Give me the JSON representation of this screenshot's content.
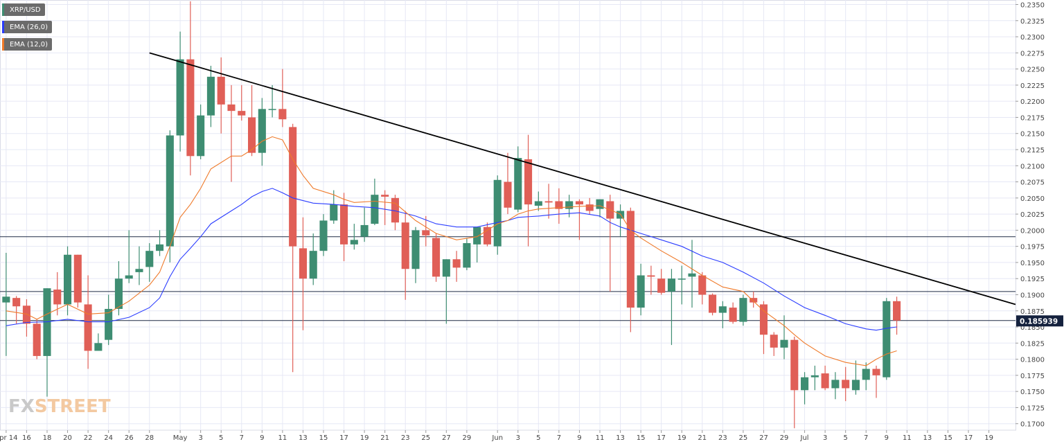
{
  "chart_data": {
    "type": "candlestick",
    "symbol": "XRP/USD",
    "legend": [
      {
        "label": "XRP/USD",
        "color": "#3e8d72"
      },
      {
        "label": "EMA (26,0)",
        "color": "#2a3cff"
      },
      {
        "label": "EMA (12,0)",
        "color": "#ef7a2a"
      }
    ],
    "colors": {
      "up": "#3e8d72",
      "down": "#e05f57",
      "ema26": "#2a3cff",
      "ema12": "#ef7a2a",
      "grid": "#e6e8f5",
      "trend": "#000000"
    },
    "ylim": [
      0.169,
      0.2357
    ],
    "y_ticks": [
      "0.1700",
      "0.1725",
      "0.1750",
      "0.1775",
      "0.1800",
      "0.1825",
      "0.1850",
      "0.1875",
      "0.1900",
      "0.1925",
      "0.1950",
      "0.1975",
      "0.2000",
      "0.2025",
      "0.2050",
      "0.2075",
      "0.2100",
      "0.2125",
      "0.2150",
      "0.2175",
      "0.2200",
      "0.2225",
      "0.2250",
      "0.2275",
      "0.2300",
      "0.2325",
      "0.2350"
    ],
    "x_range": [
      -0.3,
      49.3
    ],
    "x_ticks": [
      {
        "i": 0,
        "label": "Apr 14"
      },
      {
        "i": 1,
        "label": "16"
      },
      {
        "i": 2,
        "label": "18"
      },
      {
        "i": 3,
        "label": "20"
      },
      {
        "i": 4,
        "label": "22"
      },
      {
        "i": 5,
        "label": "24"
      },
      {
        "i": 6,
        "label": "26"
      },
      {
        "i": 7,
        "label": "28"
      },
      {
        "i": 8.5,
        "label": "May"
      },
      {
        "i": 9.5,
        "label": "3"
      },
      {
        "i": 10.5,
        "label": "5"
      },
      {
        "i": 11.5,
        "label": "7"
      },
      {
        "i": 12.5,
        "label": "9"
      },
      {
        "i": 13.5,
        "label": "11"
      },
      {
        "i": 14.5,
        "label": "13"
      },
      {
        "i": 15.5,
        "label": "15"
      },
      {
        "i": 16.5,
        "label": "17"
      },
      {
        "i": 17.5,
        "label": "19"
      },
      {
        "i": 18.5,
        "label": "21"
      },
      {
        "i": 19.5,
        "label": "23"
      },
      {
        "i": 20.5,
        "label": "25"
      },
      {
        "i": 21.5,
        "label": "27"
      },
      {
        "i": 22.5,
        "label": "29"
      },
      {
        "i": 24,
        "label": "Jun"
      },
      {
        "i": 25,
        "label": "3"
      },
      {
        "i": 26,
        "label": "5"
      },
      {
        "i": 27,
        "label": "7"
      },
      {
        "i": 28,
        "label": "9"
      },
      {
        "i": 29,
        "label": "11"
      },
      {
        "i": 30,
        "label": "13"
      },
      {
        "i": 31,
        "label": "15"
      },
      {
        "i": 32,
        "label": "17"
      },
      {
        "i": 33,
        "label": "19"
      },
      {
        "i": 34,
        "label": "21"
      },
      {
        "i": 35,
        "label": "23"
      },
      {
        "i": 36,
        "label": "25"
      },
      {
        "i": 37,
        "label": "27"
      },
      {
        "i": 38,
        "label": "29"
      },
      {
        "i": 39,
        "label": "Jul"
      },
      {
        "i": 40,
        "label": "3"
      },
      {
        "i": 41,
        "label": "5"
      },
      {
        "i": 42,
        "label": "7"
      },
      {
        "i": 43,
        "label": "9"
      },
      {
        "i": 44,
        "label": "11"
      },
      {
        "i": 45,
        "label": "13"
      },
      {
        "i": 46,
        "label": "15"
      },
      {
        "i": 47,
        "label": "17"
      },
      {
        "i": 48,
        "label": "19"
      }
    ],
    "candles": [
      {
        "i": 0.0,
        "o": 0.1888,
        "h": 0.1965,
        "l": 0.1805,
        "c": 0.1897
      },
      {
        "i": 0.5,
        "o": 0.1895,
        "h": 0.1898,
        "l": 0.1855,
        "c": 0.1882
      },
      {
        "i": 1.0,
        "o": 0.1883,
        "h": 0.1893,
        "l": 0.1835,
        "c": 0.1855
      },
      {
        "i": 1.5,
        "o": 0.1855,
        "h": 0.1862,
        "l": 0.18,
        "c": 0.1805
      },
      {
        "i": 2.0,
        "o": 0.1805,
        "h": 0.191,
        "l": 0.1742,
        "c": 0.191
      },
      {
        "i": 2.5,
        "o": 0.1908,
        "h": 0.1935,
        "l": 0.1868,
        "c": 0.1885
      },
      {
        "i": 3.0,
        "o": 0.1885,
        "h": 0.1975,
        "l": 0.1868,
        "c": 0.1962
      },
      {
        "i": 3.5,
        "o": 0.1962,
        "h": 0.1962,
        "l": 0.188,
        "c": 0.1888
      },
      {
        "i": 4.0,
        "o": 0.1885,
        "h": 0.193,
        "l": 0.1785,
        "c": 0.1813
      },
      {
        "i": 4.5,
        "o": 0.1813,
        "h": 0.184,
        "l": 0.1813,
        "c": 0.1825
      },
      {
        "i": 5.0,
        "o": 0.183,
        "h": 0.19,
        "l": 0.1822,
        "c": 0.1878
      },
      {
        "i": 5.5,
        "o": 0.1878,
        "h": 0.1952,
        "l": 0.1868,
        "c": 0.1925
      },
      {
        "i": 6.0,
        "o": 0.1925,
        "h": 0.2,
        "l": 0.1918,
        "c": 0.193
      },
      {
        "i": 6.5,
        "o": 0.1935,
        "h": 0.1975,
        "l": 0.1915,
        "c": 0.194
      },
      {
        "i": 7.0,
        "o": 0.1943,
        "h": 0.198,
        "l": 0.192,
        "c": 0.1968
      },
      {
        "i": 7.5,
        "o": 0.1968,
        "h": 0.2,
        "l": 0.196,
        "c": 0.1978
      },
      {
        "i": 8.0,
        "o": 0.1975,
        "h": 0.2155,
        "l": 0.195,
        "c": 0.2147
      },
      {
        "i": 8.5,
        "o": 0.2147,
        "h": 0.2308,
        "l": 0.2122,
        "c": 0.2265
      },
      {
        "i": 9.0,
        "o": 0.2265,
        "h": 0.2355,
        "l": 0.2085,
        "c": 0.2115
      },
      {
        "i": 9.5,
        "o": 0.2115,
        "h": 0.2195,
        "l": 0.211,
        "c": 0.2178
      },
      {
        "i": 10.0,
        "o": 0.2178,
        "h": 0.2255,
        "l": 0.216,
        "c": 0.2238
      },
      {
        "i": 10.5,
        "o": 0.2238,
        "h": 0.2268,
        "l": 0.215,
        "c": 0.2195
      },
      {
        "i": 11.0,
        "o": 0.2195,
        "h": 0.2225,
        "l": 0.2075,
        "c": 0.2185
      },
      {
        "i": 11.5,
        "o": 0.2185,
        "h": 0.2225,
        "l": 0.217,
        "c": 0.2178
      },
      {
        "i": 12.0,
        "o": 0.2175,
        "h": 0.2225,
        "l": 0.2115,
        "c": 0.212
      },
      {
        "i": 12.5,
        "o": 0.212,
        "h": 0.2205,
        "l": 0.21,
        "c": 0.2188
      },
      {
        "i": 13.0,
        "o": 0.2188,
        "h": 0.2225,
        "l": 0.2175,
        "c": 0.2188
      },
      {
        "i": 13.5,
        "o": 0.2188,
        "h": 0.225,
        "l": 0.216,
        "c": 0.2172
      },
      {
        "i": 14.0,
        "o": 0.216,
        "h": 0.2165,
        "l": 0.178,
        "c": 0.1975
      },
      {
        "i": 14.5,
        "o": 0.1972,
        "h": 0.202,
        "l": 0.1845,
        "c": 0.1925
      },
      {
        "i": 15.0,
        "o": 0.1925,
        "h": 0.1995,
        "l": 0.1915,
        "c": 0.1968
      },
      {
        "i": 15.5,
        "o": 0.1968,
        "h": 0.2025,
        "l": 0.196,
        "c": 0.2015
      },
      {
        "i": 16.0,
        "o": 0.2015,
        "h": 0.2062,
        "l": 0.201,
        "c": 0.204
      },
      {
        "i": 16.5,
        "o": 0.204,
        "h": 0.2058,
        "l": 0.1952,
        "c": 0.1978
      },
      {
        "i": 17.0,
        "o": 0.1978,
        "h": 0.201,
        "l": 0.197,
        "c": 0.1985
      },
      {
        "i": 17.5,
        "o": 0.199,
        "h": 0.2035,
        "l": 0.1982,
        "c": 0.2008
      },
      {
        "i": 18.0,
        "o": 0.201,
        "h": 0.208,
        "l": 0.2008,
        "c": 0.2055
      },
      {
        "i": 18.5,
        "o": 0.2055,
        "h": 0.2062,
        "l": 0.2008,
        "c": 0.2052
      },
      {
        "i": 19.0,
        "o": 0.205,
        "h": 0.2055,
        "l": 0.2,
        "c": 0.2012
      },
      {
        "i": 19.5,
        "o": 0.2012,
        "h": 0.203,
        "l": 0.1892,
        "c": 0.194
      },
      {
        "i": 20.0,
        "o": 0.194,
        "h": 0.2005,
        "l": 0.1918,
        "c": 0.2
      },
      {
        "i": 20.5,
        "o": 0.2,
        "h": 0.2022,
        "l": 0.1975,
        "c": 0.1992
      },
      {
        "i": 21.0,
        "o": 0.1988,
        "h": 0.1995,
        "l": 0.192,
        "c": 0.1928
      },
      {
        "i": 21.5,
        "o": 0.1928,
        "h": 0.1955,
        "l": 0.1855,
        "c": 0.1955
      },
      {
        "i": 22.0,
        "o": 0.1955,
        "h": 0.1968,
        "l": 0.192,
        "c": 0.1942
      },
      {
        "i": 22.5,
        "o": 0.1942,
        "h": 0.1988,
        "l": 0.1938,
        "c": 0.198
      },
      {
        "i": 23.0,
        "o": 0.1978,
        "h": 0.2005,
        "l": 0.195,
        "c": 0.2005
      },
      {
        "i": 23.5,
        "o": 0.2005,
        "h": 0.2012,
        "l": 0.1975,
        "c": 0.1978
      },
      {
        "i": 24.0,
        "o": 0.1975,
        "h": 0.2085,
        "l": 0.1962,
        "c": 0.2078
      },
      {
        "i": 24.5,
        "o": 0.2075,
        "h": 0.212,
        "l": 0.2025,
        "c": 0.2035
      },
      {
        "i": 25.0,
        "o": 0.2032,
        "h": 0.213,
        "l": 0.2028,
        "c": 0.2112
      },
      {
        "i": 25.5,
        "o": 0.211,
        "h": 0.2148,
        "l": 0.1975,
        "c": 0.204
      },
      {
        "i": 26.0,
        "o": 0.2038,
        "h": 0.206,
        "l": 0.203,
        "c": 0.2045
      },
      {
        "i": 26.5,
        "o": 0.2045,
        "h": 0.2072,
        "l": 0.2018,
        "c": 0.2043
      },
      {
        "i": 27.0,
        "o": 0.2045,
        "h": 0.2065,
        "l": 0.201,
        "c": 0.2033
      },
      {
        "i": 27.5,
        "o": 0.2033,
        "h": 0.2055,
        "l": 0.202,
        "c": 0.2045
      },
      {
        "i": 28.0,
        "o": 0.2045,
        "h": 0.2048,
        "l": 0.1985,
        "c": 0.204
      },
      {
        "i": 28.5,
        "o": 0.204,
        "h": 0.205,
        "l": 0.2025,
        "c": 0.203
      },
      {
        "i": 29.0,
        "o": 0.2033,
        "h": 0.2048,
        "l": 0.202,
        "c": 0.2048
      },
      {
        "i": 29.5,
        "o": 0.2045,
        "h": 0.2055,
        "l": 0.1905,
        "c": 0.2018
      },
      {
        "i": 30.0,
        "o": 0.2018,
        "h": 0.204,
        "l": 0.199,
        "c": 0.203
      },
      {
        "i": 30.5,
        "o": 0.203,
        "h": 0.2035,
        "l": 0.1842,
        "c": 0.188
      },
      {
        "i": 31.0,
        "o": 0.188,
        "h": 0.1948,
        "l": 0.1868,
        "c": 0.193
      },
      {
        "i": 31.5,
        "o": 0.193,
        "h": 0.1945,
        "l": 0.19,
        "c": 0.1928
      },
      {
        "i": 32.0,
        "o": 0.1925,
        "h": 0.194,
        "l": 0.19,
        "c": 0.1903
      },
      {
        "i": 32.5,
        "o": 0.1905,
        "h": 0.194,
        "l": 0.1822,
        "c": 0.1925
      },
      {
        "i": 33.0,
        "o": 0.1925,
        "h": 0.1945,
        "l": 0.1885,
        "c": 0.1925
      },
      {
        "i": 33.5,
        "o": 0.1928,
        "h": 0.1985,
        "l": 0.188,
        "c": 0.1933
      },
      {
        "i": 34.0,
        "o": 0.193,
        "h": 0.1935,
        "l": 0.1885,
        "c": 0.19
      },
      {
        "i": 34.5,
        "o": 0.19,
        "h": 0.1902,
        "l": 0.1868,
        "c": 0.1872
      },
      {
        "i": 35.0,
        "o": 0.1872,
        "h": 0.189,
        "l": 0.1848,
        "c": 0.1882
      },
      {
        "i": 35.5,
        "o": 0.188,
        "h": 0.1888,
        "l": 0.1855,
        "c": 0.1858
      },
      {
        "i": 36.0,
        "o": 0.1858,
        "h": 0.19,
        "l": 0.1852,
        "c": 0.1895
      },
      {
        "i": 36.5,
        "o": 0.1895,
        "h": 0.1905,
        "l": 0.188,
        "c": 0.1888
      },
      {
        "i": 37.0,
        "o": 0.1885,
        "h": 0.189,
        "l": 0.1808,
        "c": 0.1838
      },
      {
        "i": 37.5,
        "o": 0.1838,
        "h": 0.1842,
        "l": 0.1805,
        "c": 0.1818
      },
      {
        "i": 38.0,
        "o": 0.1818,
        "h": 0.1868,
        "l": 0.18,
        "c": 0.183
      },
      {
        "i": 38.5,
        "o": 0.183,
        "h": 0.1835,
        "l": 0.1693,
        "c": 0.1752
      },
      {
        "i": 39.0,
        "o": 0.1752,
        "h": 0.178,
        "l": 0.173,
        "c": 0.1772
      },
      {
        "i": 39.5,
        "o": 0.1772,
        "h": 0.179,
        "l": 0.1752,
        "c": 0.1775
      },
      {
        "i": 40.0,
        "o": 0.1778,
        "h": 0.179,
        "l": 0.1752,
        "c": 0.1755
      },
      {
        "i": 40.5,
        "o": 0.1755,
        "h": 0.178,
        "l": 0.1738,
        "c": 0.1768
      },
      {
        "i": 41.0,
        "o": 0.1768,
        "h": 0.1788,
        "l": 0.1735,
        "c": 0.1755
      },
      {
        "i": 41.5,
        "o": 0.1752,
        "h": 0.1798,
        "l": 0.1745,
        "c": 0.1768
      },
      {
        "i": 42.0,
        "o": 0.1768,
        "h": 0.1795,
        "l": 0.1752,
        "c": 0.1785
      },
      {
        "i": 42.5,
        "o": 0.1785,
        "h": 0.179,
        "l": 0.174,
        "c": 0.1775
      },
      {
        "i": 43.0,
        "o": 0.1772,
        "h": 0.1895,
        "l": 0.1768,
        "c": 0.189
      },
      {
        "i": 43.5,
        "o": 0.189,
        "h": 0.1897,
        "l": 0.1838,
        "c": 0.186
      }
    ],
    "ema12": [
      [
        0.0,
        0.1875
      ],
      [
        1.0,
        0.187
      ],
      [
        1.5,
        0.1862
      ],
      [
        2.0,
        0.187
      ],
      [
        3.0,
        0.1885
      ],
      [
        4.0,
        0.187
      ],
      [
        5.0,
        0.1872
      ],
      [
        6.0,
        0.189
      ],
      [
        7.0,
        0.1915
      ],
      [
        7.5,
        0.1935
      ],
      [
        8.0,
        0.1975
      ],
      [
        8.5,
        0.202
      ],
      [
        9.0,
        0.204
      ],
      [
        9.5,
        0.2065
      ],
      [
        10.0,
        0.2095
      ],
      [
        11.0,
        0.2115
      ],
      [
        11.5,
        0.2115
      ],
      [
        12.0,
        0.2125
      ],
      [
        12.5,
        0.2138
      ],
      [
        13.0,
        0.2145
      ],
      [
        13.5,
        0.214
      ],
      [
        14.0,
        0.211
      ],
      [
        14.5,
        0.2085
      ],
      [
        15.0,
        0.2065
      ],
      [
        16.0,
        0.2055
      ],
      [
        16.5,
        0.2048
      ],
      [
        17.0,
        0.2043
      ],
      [
        18.0,
        0.2045
      ],
      [
        19.0,
        0.2042
      ],
      [
        20.0,
        0.2015
      ],
      [
        20.5,
        0.2005
      ],
      [
        21.0,
        0.1995
      ],
      [
        22.0,
        0.1985
      ],
      [
        23.0,
        0.199
      ],
      [
        24.0,
        0.201
      ],
      [
        24.5,
        0.2015
      ],
      [
        25.0,
        0.2025
      ],
      [
        25.5,
        0.203
      ],
      [
        26.0,
        0.2033
      ],
      [
        27.0,
        0.2035
      ],
      [
        28.0,
        0.2037
      ],
      [
        29.0,
        0.2038
      ],
      [
        30.0,
        0.2025
      ],
      [
        30.5,
        0.2
      ],
      [
        31.0,
        0.1988
      ],
      [
        32.0,
        0.1968
      ],
      [
        33.0,
        0.195
      ],
      [
        34.0,
        0.193
      ],
      [
        35.0,
        0.1912
      ],
      [
        36.0,
        0.1905
      ],
      [
        37.0,
        0.1875
      ],
      [
        38.0,
        0.1852
      ],
      [
        38.5,
        0.1838
      ],
      [
        39.0,
        0.1825
      ],
      [
        40.0,
        0.1805
      ],
      [
        41.0,
        0.1795
      ],
      [
        42.0,
        0.179
      ],
      [
        42.5,
        0.18
      ],
      [
        43.0,
        0.1808
      ],
      [
        43.5,
        0.1813
      ]
    ],
    "ema26": [
      [
        0.0,
        0.1852
      ],
      [
        1.0,
        0.1857
      ],
      [
        2.0,
        0.1858
      ],
      [
        3.0,
        0.1862
      ],
      [
        4.0,
        0.1858
      ],
      [
        5.0,
        0.1858
      ],
      [
        6.0,
        0.1865
      ],
      [
        7.0,
        0.188
      ],
      [
        7.5,
        0.1895
      ],
      [
        8.0,
        0.1928
      ],
      [
        8.5,
        0.1955
      ],
      [
        9.0,
        0.1972
      ],
      [
        9.5,
        0.199
      ],
      [
        10.0,
        0.201
      ],
      [
        11.0,
        0.203
      ],
      [
        11.5,
        0.204
      ],
      [
        12.0,
        0.2052
      ],
      [
        12.5,
        0.206
      ],
      [
        13.0,
        0.2065
      ],
      [
        13.5,
        0.2058
      ],
      [
        14.0,
        0.205
      ],
      [
        15.0,
        0.2042
      ],
      [
        16.0,
        0.204
      ],
      [
        17.0,
        0.2037
      ],
      [
        18.0,
        0.2035
      ],
      [
        19.0,
        0.203
      ],
      [
        20.0,
        0.2022
      ],
      [
        21.0,
        0.201
      ],
      [
        22.0,
        0.2005
      ],
      [
        23.0,
        0.2005
      ],
      [
        24.0,
        0.2012
      ],
      [
        24.5,
        0.2015
      ],
      [
        25.0,
        0.202
      ],
      [
        26.0,
        0.2022
      ],
      [
        27.0,
        0.2025
      ],
      [
        28.0,
        0.2027
      ],
      [
        29.0,
        0.2022
      ],
      [
        29.5,
        0.2012
      ],
      [
        30.0,
        0.2005
      ],
      [
        31.0,
        0.1995
      ],
      [
        32.0,
        0.1985
      ],
      [
        33.0,
        0.1975
      ],
      [
        34.0,
        0.196
      ],
      [
        35.0,
        0.195
      ],
      [
        36.0,
        0.1935
      ],
      [
        37.0,
        0.1918
      ],
      [
        38.0,
        0.1898
      ],
      [
        39.0,
        0.188
      ],
      [
        40.0,
        0.1868
      ],
      [
        41.0,
        0.1855
      ],
      [
        42.0,
        0.1847
      ],
      [
        42.5,
        0.1845
      ],
      [
        43.0,
        0.1848
      ],
      [
        43.5,
        0.185
      ]
    ],
    "trendline": [
      [
        7.0,
        0.2275
      ],
      [
        49.3,
        0.1885
      ]
    ],
    "h_lines": [
      0.199,
      0.1905,
      0.186
    ],
    "last_price": "0.185939",
    "last_price_value": 0.185939,
    "watermark": {
      "fx": "FX",
      "street": "STREET"
    }
  }
}
